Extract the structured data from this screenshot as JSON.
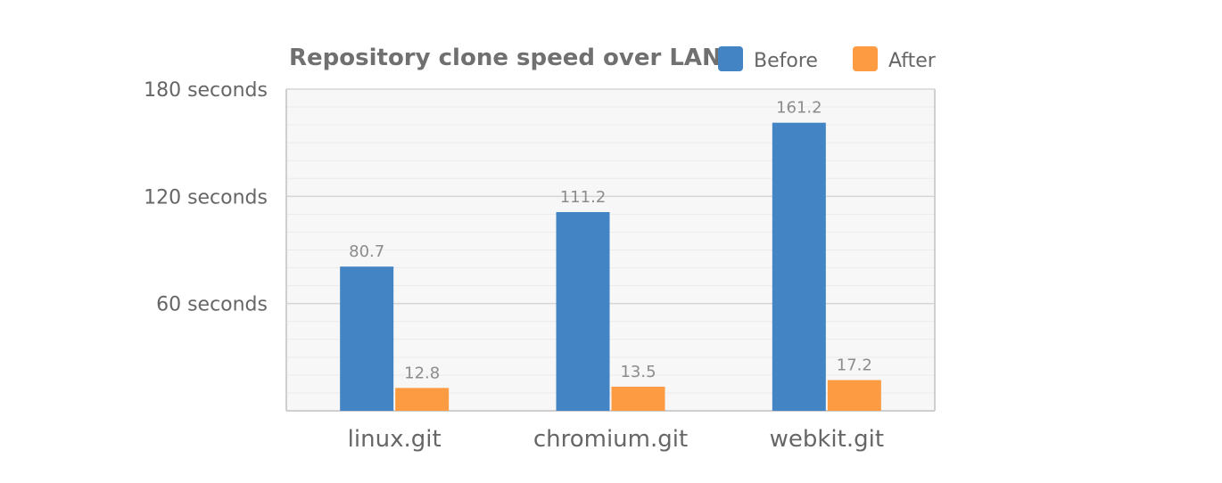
{
  "chart_data": {
    "type": "bar",
    "title": "Repository clone speed over LAN",
    "xlabel": "",
    "ylabel": "",
    "categories": [
      "linux.git",
      "chromium.git",
      "webkit.git"
    ],
    "series": [
      {
        "name": "Before",
        "values": [
          80.7,
          111.2,
          161.2
        ],
        "labels": [
          "80.7",
          "111.2",
          "161.2"
        ],
        "color": "#4384c4"
      },
      {
        "name": "After",
        "values": [
          12.8,
          13.5,
          17.2
        ],
        "labels": [
          "12.8",
          "13.5",
          "17.2"
        ],
        "color": "#fd9b42"
      }
    ],
    "ylim": [
      0,
      180
    ],
    "y_major_ticks": [
      60,
      120,
      180
    ],
    "y_tick_labels": [
      "60 seconds",
      "120 seconds",
      "180 seconds"
    ],
    "y_minor_step": 10,
    "grid": true,
    "legend_position": "top-right",
    "colors": {
      "plot_background": "#f7f7f7",
      "major_grid": "#d6d6d6",
      "minor_grid": "#ebebeb",
      "axis": "#cfcfcf",
      "title_text": "#707070",
      "label_text": "#666666",
      "value_text": "#8c8c8c"
    }
  }
}
